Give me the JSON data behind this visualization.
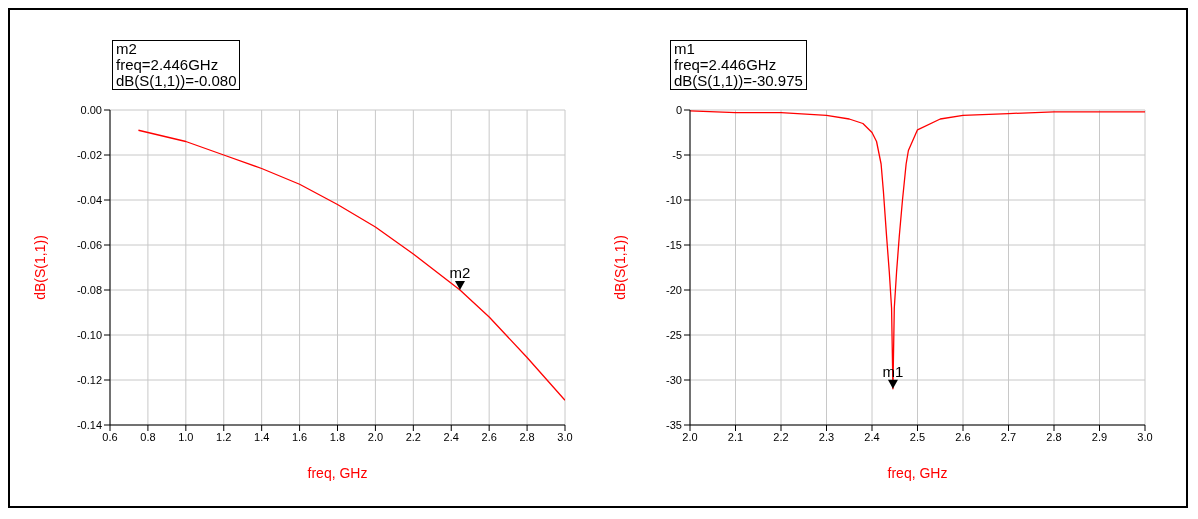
{
  "chart_data": [
    {
      "type": "line",
      "xlabel": "freq, GHz",
      "ylabel": "dB(S(1,1))",
      "annotations": [
        "m2",
        "freq=2.446GHz",
        "dB(S(1,1))=-0.080",
        {
          "text": "m2",
          "x": 2.446,
          "y": -0.08
        }
      ],
      "x": [
        0.75,
        1.0,
        1.2,
        1.4,
        1.6,
        1.8,
        2.0,
        2.2,
        2.4,
        2.446,
        2.6,
        2.8,
        3.0
      ],
      "series": [
        {
          "color": "#ff0000",
          "values": [
            -0.009,
            -0.014,
            -0.02,
            -0.026,
            -0.033,
            -0.042,
            -0.052,
            -0.064,
            -0.077,
            -0.08,
            -0.092,
            -0.11,
            -0.129
          ]
        }
      ],
      "xlim": [
        0.6,
        3.0
      ],
      "xticks": [
        0.6,
        0.8,
        {
          "value": 1.0,
          "label": "1.0"
        },
        1.2,
        1.4,
        1.6,
        1.8,
        {
          "value": 2.0,
          "label": "2.0"
        },
        2.2,
        2.4,
        2.6,
        2.8,
        {
          "value": 3.0,
          "label": "3.0"
        }
      ],
      "ylim": [
        -0.14,
        0
      ],
      "yticks": [
        {
          "value": 0,
          "label": "0.00"
        },
        -0.02,
        -0.04,
        -0.06,
        -0.08,
        {
          "value": -0.1,
          "label": "-0.10"
        },
        -0.12,
        -0.14
      ],
      "grid": true,
      "legend": false,
      "marker": "none",
      "line_style": "solid"
    },
    {
      "type": "line",
      "xlabel": "freq, GHz",
      "ylabel": "dB(S(1,1))",
      "annotations": [
        "m1",
        "freq=2.446GHz",
        "dB(S(1,1))=-30.975",
        {
          "text": "m1",
          "x": 2.446,
          "y": -30.975
        }
      ],
      "x": [
        2.0,
        2.1,
        2.2,
        2.3,
        2.35,
        2.38,
        2.4,
        2.41,
        2.42,
        2.425,
        2.432,
        2.438,
        2.443,
        2.446,
        2.449,
        2.454,
        2.46,
        2.467,
        2.475,
        2.48,
        2.5,
        2.55,
        2.6,
        2.7,
        2.8,
        2.9,
        3.0
      ],
      "series": [
        {
          "color": "#ff0000",
          "values": [
            -0.1,
            -0.3,
            -0.3,
            -0.6,
            -1.0,
            -1.5,
            -2.5,
            -3.5,
            -6,
            -9,
            -14,
            -18,
            -22,
            -30.975,
            -22,
            -18,
            -14,
            -10,
            -6,
            -4.5,
            -2.2,
            -1,
            -0.6,
            -0.4,
            -0.2,
            -0.2,
            -0.2
          ]
        }
      ],
      "xlim": [
        2.0,
        3.0
      ],
      "xticks": [
        {
          "value": 2.0,
          "label": "2.0"
        },
        2.1,
        2.2,
        2.3,
        2.4,
        2.5,
        2.6,
        2.7,
        2.8,
        2.9,
        {
          "value": 3.0,
          "label": "3.0"
        }
      ],
      "ylim": [
        -35,
        0
      ],
      "yticks": [
        0,
        -5,
        -10,
        -15,
        -20,
        -25,
        -30,
        -35
      ],
      "grid": true,
      "legend": false,
      "marker": "none",
      "line_style": "solid"
    }
  ]
}
